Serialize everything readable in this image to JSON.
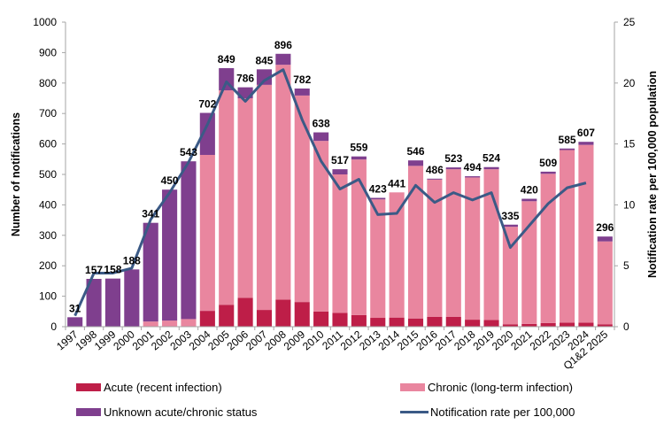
{
  "chart_data": {
    "type": "bar",
    "subtype": "stacked-bar-with-line",
    "title": "",
    "xlabel": "",
    "ylabel": "Number of notifications",
    "y2label": "Notification rate per 100,000 population",
    "ylim": [
      0,
      1000
    ],
    "y2lim": [
      0,
      25
    ],
    "yticks": [
      0,
      100,
      200,
      300,
      400,
      500,
      600,
      700,
      800,
      900,
      1000
    ],
    "y2ticks": [
      0,
      5,
      10,
      15,
      20,
      25
    ],
    "grid": false,
    "legend_position": "bottom",
    "categories": [
      "1997",
      "1998",
      "1999",
      "2000",
      "2001",
      "2002",
      "2003",
      "2004",
      "2005",
      "2006",
      "2007",
      "2008",
      "2009",
      "2010",
      "2011",
      "2012",
      "2013",
      "2014",
      "2015",
      "2016",
      "2017",
      "2018",
      "2019",
      "2020",
      "2021",
      "2022",
      "2023",
      "2024",
      "Q1&2 2025"
    ],
    "totals": [
      31,
      157,
      158,
      188,
      341,
      450,
      543,
      702,
      849,
      786,
      845,
      896,
      782,
      638,
      517,
      559,
      423,
      441,
      546,
      486,
      523,
      494,
      524,
      335,
      420,
      509,
      585,
      607,
      296
    ],
    "series": [
      {
        "name": "Acute (recent infection)",
        "type": "bar",
        "color": "#be1e48",
        "values": [
          0,
          0,
          0,
          0,
          0,
          0,
          0,
          52,
          72,
          95,
          55,
          89,
          81,
          50,
          45,
          38,
          29,
          30,
          27,
          32,
          32,
          23,
          22,
          8,
          9,
          12,
          13,
          13,
          8
        ]
      },
      {
        "name": "Chronic (long-term infection)",
        "type": "bar",
        "color": "#e9869f",
        "values": [
          0,
          0,
          0,
          0,
          17,
          20,
          25,
          512,
          704,
          655,
          739,
          771,
          678,
          560,
          455,
          511,
          389,
          411,
          501,
          451,
          485,
          467,
          495,
          320,
          403,
          490,
          567,
          584,
          272
        ]
      },
      {
        "name": "Unknown acute/chronic status",
        "type": "bar",
        "color": "#7f3f8e",
        "values": [
          31,
          157,
          158,
          188,
          324,
          430,
          518,
          138,
          73,
          36,
          51,
          36,
          23,
          28,
          17,
          10,
          5,
          0,
          18,
          3,
          6,
          4,
          7,
          7,
          8,
          7,
          5,
          10,
          16
        ]
      },
      {
        "name": "Notification rate per 100,000",
        "type": "line",
        "axis": "right",
        "color": "#3b5a86",
        "values": [
          0.9,
          4.4,
          4.4,
          4.8,
          8.8,
          11.0,
          13.5,
          16.6,
          20.1,
          18.5,
          20.2,
          21.1,
          17.0,
          13.6,
          11.3,
          12.1,
          9.2,
          9.3,
          11.6,
          10.2,
          11.0,
          10.4,
          11.0,
          6.5,
          8.3,
          10.1,
          11.4,
          11.8,
          null
        ]
      }
    ]
  },
  "legend": {
    "acute": "Acute (recent infection)",
    "chronic": "Chronic (long-term infection)",
    "unknown": "Unknown acute/chronic status",
    "rate": "Notification rate per 100,000"
  }
}
